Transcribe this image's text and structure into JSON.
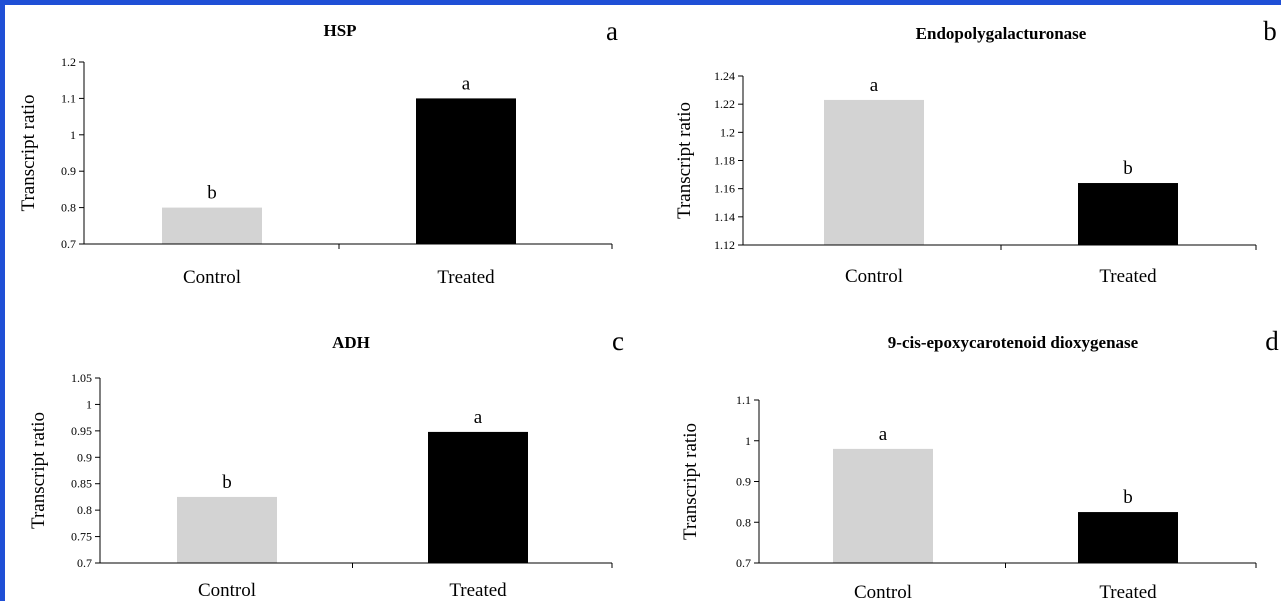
{
  "chart_data": [
    {
      "panel": "a",
      "type": "bar",
      "title": "HSP",
      "ylabel": "Transcript ratio",
      "categories": [
        "Control",
        "Treated"
      ],
      "values": [
        0.8,
        1.1
      ],
      "significance": [
        "b",
        "a"
      ],
      "colors": [
        "#d3d3d3",
        "#000000"
      ],
      "ylim": [
        0.7,
        1.2
      ],
      "yticks": [
        "0.7",
        "0.8",
        "0.9",
        "1",
        "1.1",
        "1.2"
      ]
    },
    {
      "panel": "b",
      "type": "bar",
      "title": "Endopolygalacturonase",
      "ylabel": "Transcript ratio",
      "categories": [
        "Control",
        "Treated"
      ],
      "values": [
        1.223,
        1.164
      ],
      "significance": [
        "a",
        "b"
      ],
      "colors": [
        "#d3d3d3",
        "#000000"
      ],
      "ylim": [
        1.12,
        1.24
      ],
      "yticks": [
        "1.12",
        "1.14",
        "1.16",
        "1.18",
        "1.2",
        "1.22",
        "1.24"
      ]
    },
    {
      "panel": "c",
      "type": "bar",
      "title": "ADH",
      "ylabel": "Transcript ratio",
      "categories": [
        "Control",
        "Treated"
      ],
      "values": [
        0.825,
        0.948
      ],
      "significance": [
        "b",
        "a"
      ],
      "colors": [
        "#d3d3d3",
        "#000000"
      ],
      "ylim": [
        0.7,
        1.05
      ],
      "yticks": [
        "0.7",
        "0.75",
        "0.8",
        "0.85",
        "0.9",
        "0.95",
        "1",
        "1.05"
      ]
    },
    {
      "panel": "d",
      "type": "bar",
      "title": "9-cis-epoxycarotenoid dioxygenase",
      "ylabel": "Transcript ratio",
      "categories": [
        "Control",
        "Treated"
      ],
      "values": [
        0.98,
        0.825
      ],
      "significance": [
        "a",
        "b"
      ],
      "colors": [
        "#d3d3d3",
        "#000000"
      ],
      "ylim": [
        0.7,
        1.1
      ],
      "yticks": [
        "0.7",
        "0.8",
        "0.9",
        "1",
        "1.1"
      ]
    }
  ]
}
